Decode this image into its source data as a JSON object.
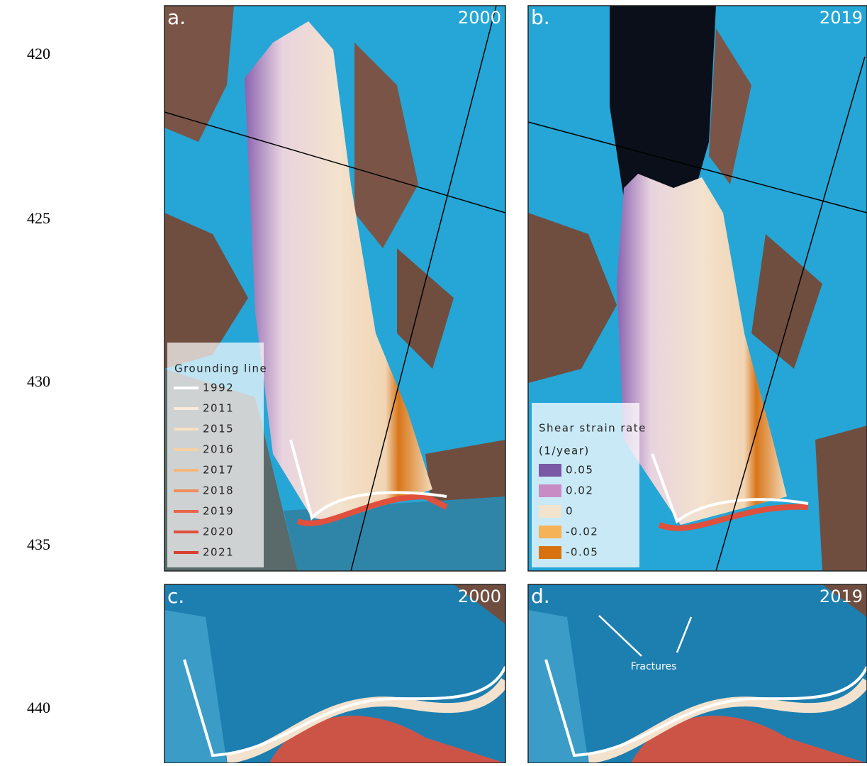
{
  "line_numbers": [
    "420",
    "425",
    "430",
    "435",
    "440"
  ],
  "panels": [
    {
      "label": "a.",
      "year": "2000"
    },
    {
      "label": "b.",
      "year": "2019"
    },
    {
      "label": "c.",
      "year": "2000"
    },
    {
      "label": "d.",
      "year": "2019"
    }
  ],
  "grounding_legend": {
    "title": "Grounding line",
    "entries": [
      {
        "label": "1992",
        "color": "#ffffff"
      },
      {
        "label": "2011",
        "color": "#fbeadb"
      },
      {
        "label": "2015",
        "color": "#f8dfc2"
      },
      {
        "label": "2016",
        "color": "#f5d1a4"
      },
      {
        "label": "2017",
        "color": "#f4b67a"
      },
      {
        "label": "2018",
        "color": "#ef8d5c"
      },
      {
        "label": "2019",
        "color": "#e8644a"
      },
      {
        "label": "2020",
        "color": "#df503c"
      },
      {
        "label": "2021",
        "color": "#d83f2f"
      }
    ]
  },
  "shear_legend": {
    "title": "Shear strain rate",
    "unit": "(1/year)",
    "entries": [
      {
        "label": "0.05",
        "color": "#7b58a6"
      },
      {
        "label": "0.02",
        "color": "#c98bc4"
      },
      {
        "label": "0",
        "color": "#f2e3cd"
      },
      {
        "label": "-0.02",
        "color": "#f5b256"
      },
      {
        "label": "-0.05",
        "color": "#d7720f"
      }
    ]
  },
  "annotation": "Fractures"
}
